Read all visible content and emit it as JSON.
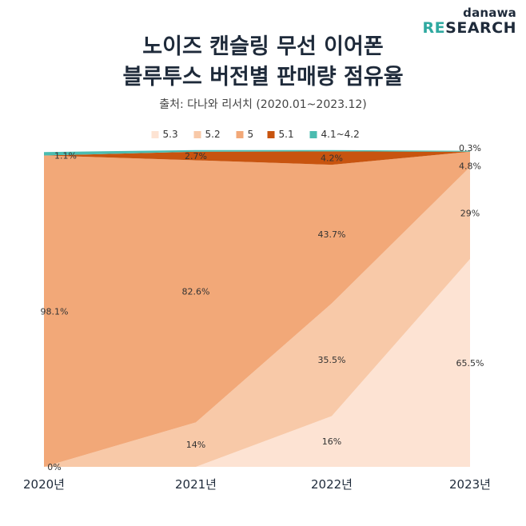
{
  "brand": {
    "top": "danawa",
    "re": "RE",
    "search": "SEARCH"
  },
  "title_line1": "노이즈 캔슬링 무선 이어폰",
  "title_line2": "블루투스 버전별 판매량 점유율",
  "source": "출처: 다나와 리서치 (2020.01~2023.12)",
  "chart_data": {
    "type": "area",
    "stacked": true,
    "normalized": true,
    "title": "",
    "xlabel": "",
    "ylabel": "",
    "ylim": [
      0,
      100
    ],
    "grid": false,
    "legend": "top-center",
    "categories": [
      "2020년",
      "2021년",
      "2022년",
      "2023년"
    ],
    "series": [
      {
        "name": "5.3",
        "color": "#fde3d3",
        "values": [
          0,
          0,
          16,
          65.5
        ],
        "labels": [
          "",
          "",
          "16%",
          "65.5%"
        ]
      },
      {
        "name": "5.2",
        "color": "#f8c9a8",
        "values": [
          0,
          14,
          35.5,
          29
        ],
        "labels": [
          "0%",
          "14%",
          "35.5%",
          "29%"
        ]
      },
      {
        "name": "5",
        "color": "#f2a878",
        "values": [
          98.1,
          82.6,
          43.7,
          4.8
        ],
        "labels": [
          "98.1%",
          "82.6%",
          "43.7%",
          "4.8%"
        ]
      },
      {
        "name": "5.1",
        "color": "#c8540f",
        "values": [
          0,
          2.7,
          4.2,
          0
        ],
        "labels": [
          "",
          "2.7%",
          "4.2%",
          ""
        ]
      },
      {
        "name": "4.1~4.2",
        "color": "#4bbcb0",
        "values": [
          1.1,
          0.5,
          0.4,
          0.3
        ],
        "labels": [
          "1.1%",
          "",
          "",
          "0.3%"
        ]
      }
    ]
  }
}
